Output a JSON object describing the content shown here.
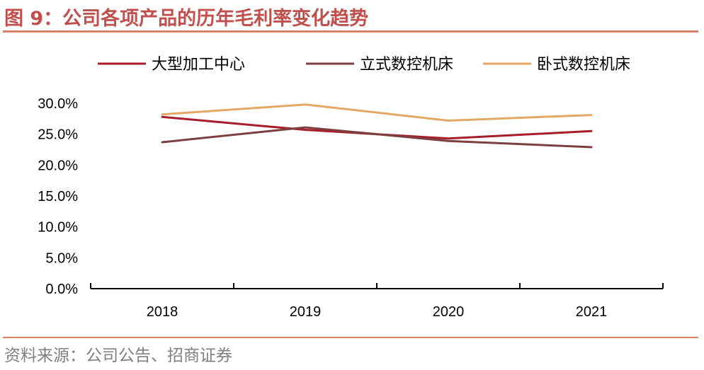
{
  "figure": {
    "title": "图 9：公司各项产品的历年毛利率变化趋势",
    "source": "资料来源：公司公告、招商证券"
  },
  "chart_data": {
    "type": "line",
    "title": "",
    "xlabel": "",
    "ylabel": "",
    "categories": [
      "2018",
      "2019",
      "2020",
      "2021"
    ],
    "ylim": [
      0,
      30
    ],
    "yticks": [
      "0.0%",
      "5.0%",
      "10.0%",
      "15.0%",
      "20.0%",
      "25.0%",
      "30.0%"
    ],
    "grid": false,
    "legend_position": "top",
    "series": [
      {
        "name": "大型加工中心",
        "color": "#A71D2A",
        "values": [
          27.8,
          25.7,
          24.3,
          25.5
        ]
      },
      {
        "name": "立式数控机床",
        "color": "#7B3F3F",
        "values": [
          23.7,
          26.1,
          23.9,
          22.9
        ]
      },
      {
        "name": "卧式数控机床",
        "color": "#E4A864",
        "values": [
          28.2,
          29.8,
          27.2,
          28.1
        ]
      }
    ]
  }
}
